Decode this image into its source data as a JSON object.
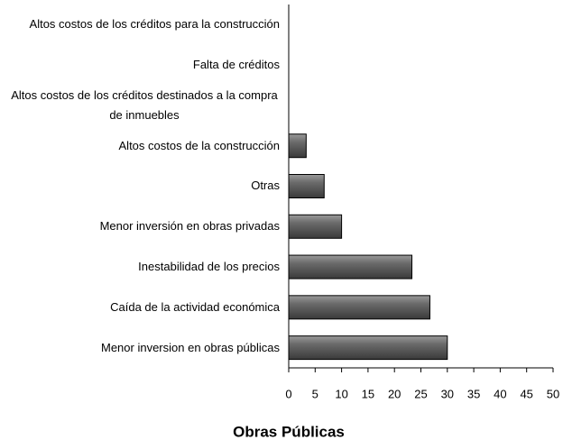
{
  "chart_data": {
    "type": "barh",
    "title": "Obras Públicas",
    "categories": [
      "Altos costos de los créditos para la construcción",
      "Falta de créditos",
      "Altos costos de los créditos destinados a la compra de inmuebles",
      "Altos costos de la construcción",
      "Otras",
      "Menor inversión en obras privadas",
      "Inestabilidad de los precios",
      "Caída de la actividad económica",
      "Menor inversion en obras públicas"
    ],
    "values": [
      0,
      0,
      0,
      3.3,
      6.7,
      10,
      23.3,
      26.7,
      30
    ],
    "color": "#5a5a5a",
    "xlim": [
      0,
      50
    ],
    "xticks": [
      0,
      5,
      10,
      15,
      20,
      25,
      30,
      35,
      40,
      45,
      50
    ]
  }
}
